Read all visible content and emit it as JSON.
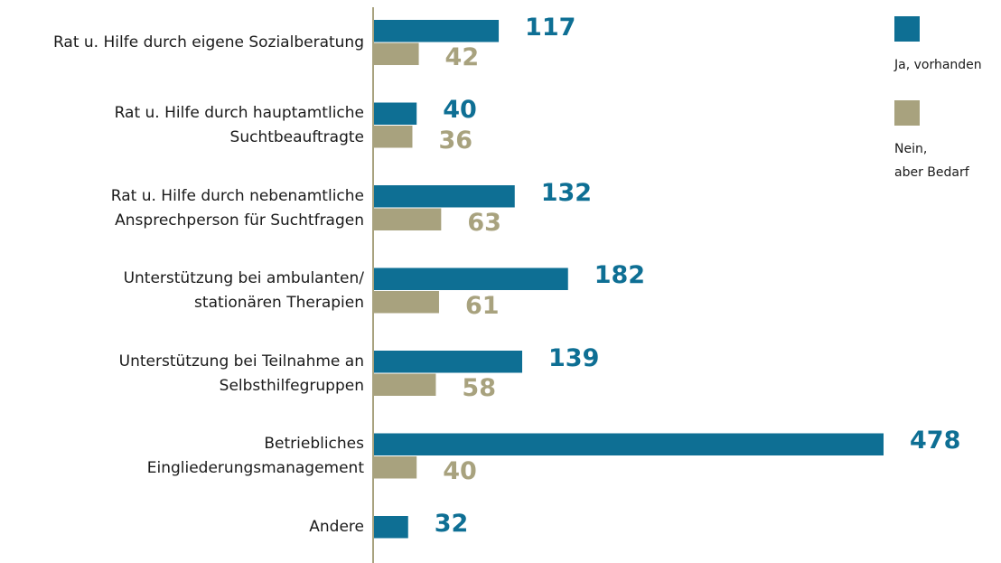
{
  "chart_data": {
    "type": "barh",
    "categories": [
      "Rat u. Hilfe durch eigene Sozialberatung",
      "Rat u. Hilfe durch hauptamtliche\nSuchtbeauftragte",
      "Rat u. Hilfe durch nebenamtliche\nAnsprechperson für Suchtfragen",
      "Unterstützung bei ambulanten/\nstationären Therapien",
      "Unterstützung bei Teilnahme an\nSelbsthilfegruppen",
      "Betriebliches\nEingliederungsmanagement",
      "Andere"
    ],
    "series": [
      {
        "name": "Ja, vorhanden",
        "color": "#0e6f94",
        "values": [
          117,
          40,
          132,
          182,
          139,
          478,
          32
        ]
      },
      {
        "name": "Nein,\naber Bedarf",
        "color": "#a8a27e",
        "values": [
          42,
          36,
          63,
          61,
          58,
          40,
          null
        ]
      }
    ],
    "legend": "right"
  }
}
